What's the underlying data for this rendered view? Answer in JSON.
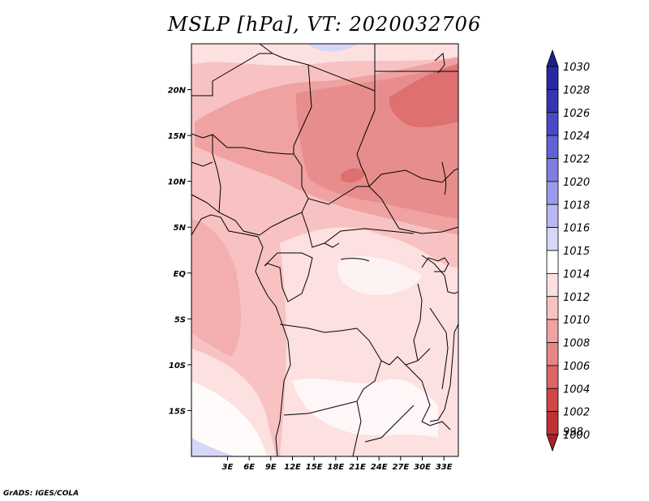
{
  "title": "MSLP [hPa], VT: 2020032706",
  "credit": "GrADS: IGES/COLA",
  "map": {
    "lat_range": [
      -20,
      25
    ],
    "lon_range": [
      -2,
      35
    ],
    "lat_ticks": [
      {
        "value": 20,
        "label": "20N"
      },
      {
        "value": 15,
        "label": "15N"
      },
      {
        "value": 10,
        "label": "10N"
      },
      {
        "value": 5,
        "label": "5N"
      },
      {
        "value": 0,
        "label": "EQ"
      },
      {
        "value": -5,
        "label": "5S"
      },
      {
        "value": -10,
        "label": "10S"
      },
      {
        "value": -15,
        "label": "15S"
      }
    ],
    "lon_ticks": [
      {
        "value": 3,
        "label": "3E"
      },
      {
        "value": 6,
        "label": "6E"
      },
      {
        "value": 9,
        "label": "9E"
      },
      {
        "value": 12,
        "label": "12E"
      },
      {
        "value": 15,
        "label": "15E"
      },
      {
        "value": 18,
        "label": "18E"
      },
      {
        "value": 21,
        "label": "21E"
      },
      {
        "value": 24,
        "label": "24E"
      },
      {
        "value": 27,
        "label": "27E"
      },
      {
        "value": 30,
        "label": "30E"
      },
      {
        "value": 33,
        "label": "33E"
      }
    ]
  },
  "colorbar": {
    "levels": [
      {
        "label": "1030",
        "color": "#1e1e8c"
      },
      {
        "label": "1028",
        "color": "#2828a0"
      },
      {
        "label": "1026",
        "color": "#3535b4"
      },
      {
        "label": "1024",
        "color": "#4a4ac8"
      },
      {
        "label": "1022",
        "color": "#6262d6"
      },
      {
        "label": "1020",
        "color": "#7d7de2"
      },
      {
        "label": "1018",
        "color": "#9a9aec"
      },
      {
        "label": "1016",
        "color": "#b8b8f2"
      },
      {
        "label": "1015",
        "color": "#d6d6f8"
      },
      {
        "label": "1014",
        "color": "#ffffff"
      },
      {
        "label": "1012",
        "color": "#fde0e0"
      },
      {
        "label": "1010",
        "color": "#f8c2c2"
      },
      {
        "label": "1008",
        "color": "#f0a2a2"
      },
      {
        "label": "1006",
        "color": "#e68686"
      },
      {
        "label": "1004",
        "color": "#dc6464"
      },
      {
        "label": "1002",
        "color": "#d24646"
      },
      {
        "label": "1000",
        "color": "#c03232"
      },
      {
        "label": "998",
        "color": "#a82222"
      }
    ]
  }
}
